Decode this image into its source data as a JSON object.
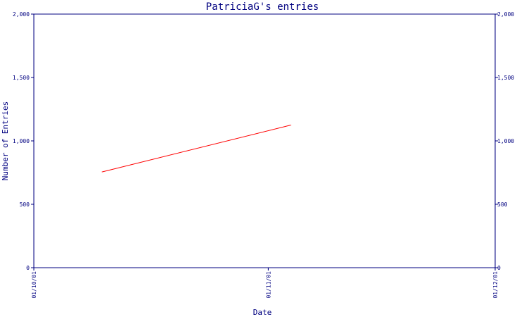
{
  "chart_data": {
    "type": "line",
    "title": "PatriciaG's entries",
    "xlabel": "Date",
    "ylabel": "Number of Entries",
    "x_ticks": [
      "01/10/01",
      "01/11/01",
      "01/12/01"
    ],
    "y_ticks": [
      "0",
      "500",
      "1,000",
      "1,500",
      "2,000"
    ],
    "y_tick_values": [
      0,
      500,
      1000,
      1500,
      2000
    ],
    "ylim": [
      0,
      2000
    ],
    "xlim": [
      "2001-10-01",
      "2001-12-01"
    ],
    "x": [
      "2001-10-10",
      "2001-11-04"
    ],
    "series": [
      {
        "values": [
          755,
          1125
        ]
      }
    ],
    "grid": false,
    "right_axis": true,
    "colors": {
      "axes": "#000080",
      "line": "#ff0000",
      "background": "#ffffff"
    }
  }
}
